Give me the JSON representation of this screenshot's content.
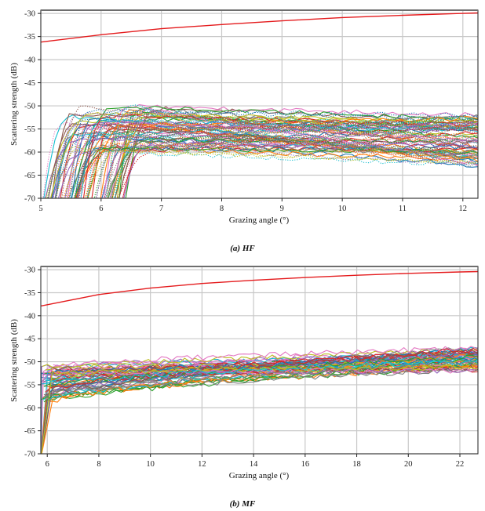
{
  "figure": {
    "panels": [
      "a",
      "b"
    ]
  },
  "chart_data": [
    {
      "id": "a",
      "type": "line",
      "caption": "(a) HF",
      "xlabel": "Grazing angle (°)",
      "ylabel": "Scattering strength (dB)",
      "xlim": [
        5,
        12.25
      ],
      "ylim": [
        -70,
        -29.3
      ],
      "xticks": [
        5,
        6,
        7,
        8,
        9,
        10,
        11,
        12
      ],
      "yticks": [
        -30,
        -35,
        -40,
        -45,
        -50,
        -55,
        -60,
        -65,
        -70
      ],
      "grid": true,
      "legend": "none",
      "series": [
        {
          "name": "model",
          "color": "#e41a1c",
          "style": "solid",
          "x": [
            5,
            6,
            7,
            8,
            9,
            10,
            11,
            12,
            12.25
          ],
          "y": [
            -36.2,
            -34.6,
            -33.3,
            -32.4,
            -31.6,
            -30.9,
            -30.4,
            -30.0,
            -29.9
          ]
        }
      ],
      "measured_traces": {
        "description": "Many measured scattering-strength curves (solid and dotted, tab10 color cycle)",
        "count_solid": 45,
        "count_dotted": 45,
        "onset_x_range": [
          5.0,
          6.4
        ],
        "plateau_y_range": [
          -60,
          -50
        ],
        "final_y_range": [
          -63,
          -52
        ],
        "colors": [
          "#1f77b4",
          "#ff7f0e",
          "#2ca02c",
          "#d62728",
          "#9467bd",
          "#8c564b",
          "#e377c2",
          "#7f7f7f",
          "#bcbd22",
          "#17becf"
        ]
      }
    },
    {
      "id": "b",
      "type": "line",
      "caption": "(b) MF",
      "xlabel": "Grazing angle (°)",
      "ylabel": "Scattering strength (dB)",
      "xlim": [
        5.75,
        22.7
      ],
      "ylim": [
        -70,
        -29.3
      ],
      "xticks": [
        6,
        8,
        10,
        12,
        14,
        16,
        18,
        20,
        22
      ],
      "yticks": [
        -30,
        -35,
        -40,
        -45,
        -50,
        -55,
        -60,
        -65,
        -70
      ],
      "grid": true,
      "legend": "none",
      "series": [
        {
          "name": "model",
          "color": "#e41a1c",
          "style": "solid",
          "x": [
            5.75,
            8,
            10,
            12,
            14,
            16,
            18,
            20,
            22,
            22.7
          ],
          "y": [
            -37.9,
            -35.4,
            -34.0,
            -33.0,
            -32.3,
            -31.7,
            -31.2,
            -30.8,
            -30.5,
            -30.4
          ]
        }
      ],
      "measured_traces": {
        "description": "Many measured scattering-strength curves (solid, tab10 color cycle)",
        "count_solid": 60,
        "count_dotted": 0,
        "onset_x_range": [
          5.75,
          6.3
        ],
        "start_y_range": [
          -59,
          -51
        ],
        "end_y_range": [
          -52,
          -47
        ],
        "colors": [
          "#1f77b4",
          "#ff7f0e",
          "#2ca02c",
          "#d62728",
          "#9467bd",
          "#8c564b",
          "#e377c2",
          "#7f7f7f",
          "#bcbd22",
          "#17becf"
        ]
      }
    }
  ]
}
